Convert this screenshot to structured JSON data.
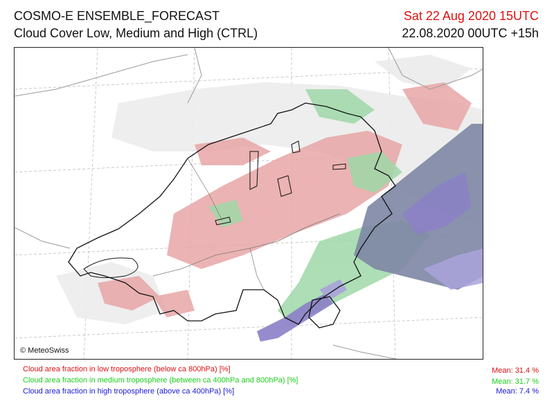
{
  "header": {
    "title": "COSMO-E ENSEMBLE_FORECAST",
    "subtitle": "Cloud Cover Low, Medium and High (CTRL)",
    "valid_time": "Sat 22 Aug 2020 15UTC",
    "run_time": "22.08.2020 00UTC +15h"
  },
  "map": {
    "copyright": "© MeteoSwiss"
  },
  "legend": {
    "low": {
      "label": "Cloud area fraction in low troposphere (below ca 800hPa) [%]",
      "mean": "Mean:  31.4 %",
      "color": "#e01010",
      "fill": "#e8a6a6"
    },
    "medium": {
      "label": "Cloud area fraction in medium troposphere (between ca 400hPa and 800hPa) [%]",
      "mean": "Mean:  31.7 %",
      "color": "#18d018",
      "fill": "#9fd8a8"
    },
    "high": {
      "label": "Cloud area fraction in high troposphere (above ca 400hPa) [%]",
      "mean": "Mean:   7.4 %",
      "color": "#1818d8",
      "fill": "#8b80c8"
    }
  }
}
